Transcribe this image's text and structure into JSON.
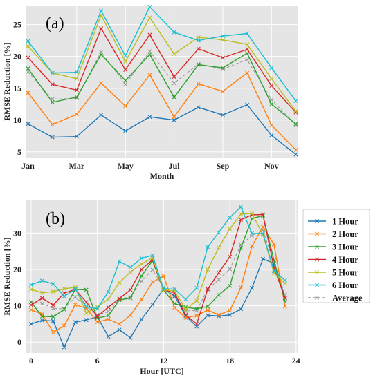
{
  "chart_data": [
    {
      "type": "line",
      "panel_label": "(a)",
      "xlabel": "Month",
      "ylabel": "RMSE Reduction [%]",
      "x": [
        1,
        2,
        3,
        4,
        5,
        6,
        7,
        8,
        9,
        10,
        11,
        12
      ],
      "xtick_values": [
        1,
        3,
        5,
        7,
        9,
        11
      ],
      "xtick_labels": [
        "Jan",
        "Mar",
        "May",
        "Jul",
        "Sep",
        "Nov"
      ],
      "ylim": [
        4,
        28
      ],
      "xlim": [
        0.9,
        12.1
      ],
      "yticks": [
        5,
        10,
        15,
        20,
        25
      ],
      "grid": true,
      "series": [
        {
          "name": "1 Hour",
          "color": "#1f77b4",
          "dashed": false,
          "values": [
            9.4,
            7.3,
            7.4,
            10.8,
            8.3,
            10.5,
            10.0,
            12.0,
            10.8,
            12.4,
            7.6,
            4.6
          ]
        },
        {
          "name": "2 Hour",
          "color": "#ff7f0e",
          "dashed": false,
          "values": [
            14.3,
            9.3,
            10.9,
            15.8,
            12.2,
            17.1,
            10.5,
            15.7,
            14.5,
            17.4,
            9.2,
            5.3
          ]
        },
        {
          "name": "3 Hour",
          "color": "#2ca02c",
          "dashed": false,
          "values": [
            18.1,
            12.8,
            13.6,
            20.3,
            16.2,
            20.3,
            13.6,
            18.7,
            18.2,
            20.5,
            12.5,
            9.4
          ]
        },
        {
          "name": "4 Hour",
          "color": "#d62728",
          "dashed": false,
          "values": [
            19.8,
            15.6,
            14.7,
            24.4,
            17.9,
            23.4,
            16.8,
            21.2,
            19.8,
            21.1,
            15.4,
            11.2
          ]
        },
        {
          "name": "5 Hour",
          "color": "#bcbd22",
          "dashed": false,
          "values": [
            21.6,
            17.4,
            16.5,
            26.5,
            19.2,
            26.1,
            20.4,
            23.0,
            22.6,
            21.9,
            16.5,
            11.4
          ]
        },
        {
          "name": "6 Hour",
          "color": "#17becf",
          "dashed": false,
          "values": [
            22.4,
            17.4,
            17.5,
            27.2,
            20.1,
            27.8,
            23.8,
            22.5,
            23.2,
            23.6,
            18.2,
            13.0
          ]
        },
        {
          "name": "Average",
          "color": "#999999",
          "dashed": true,
          "values": [
            17.6,
            13.3,
            13.4,
            20.7,
            15.6,
            20.8,
            15.8,
            18.8,
            18.0,
            19.5,
            13.2,
            9.2
          ]
        }
      ]
    },
    {
      "type": "line",
      "panel_label": "(b)",
      "xlabel": "Hour [UTC]",
      "ylabel": "RMSE Reduction [%]",
      "x": [
        0,
        1,
        2,
        3,
        4,
        5,
        6,
        7,
        8,
        9,
        10,
        11,
        12,
        13,
        14,
        15,
        16,
        17,
        18,
        19,
        20,
        21,
        22,
        23
      ],
      "xtick_values": [
        0,
        6,
        12,
        18,
        24
      ],
      "xtick_labels": [
        "0",
        "6",
        "12",
        "18",
        "24"
      ],
      "ylim": [
        -3,
        39
      ],
      "xlim": [
        -0.5,
        24.2
      ],
      "yticks": [
        0,
        10,
        20,
        30
      ],
      "grid": true,
      "legend": {
        "placement": "right",
        "entries": [
          "1 Hour",
          "2 Hour",
          "3 Hour",
          "4 Hour",
          "5 Hour",
          "6 Hour",
          "Average"
        ]
      },
      "series": [
        {
          "name": "1 Hour",
          "color": "#1f77b4",
          "dashed": false,
          "values": [
            5.0,
            6.0,
            5.8,
            -1.4,
            5.5,
            6.1,
            7.0,
            1.5,
            3.4,
            1.2,
            6.3,
            10.3,
            14.6,
            12.7,
            7.2,
            4.3,
            7.4,
            7.2,
            7.5,
            9.1,
            14.9,
            22.9,
            21.7,
            12.2
          ]
        },
        {
          "name": "2 Hour",
          "color": "#ff7f0e",
          "dashed": false,
          "values": [
            8.9,
            7.7,
            2.7,
            4.5,
            10.3,
            9.3,
            5.5,
            6.3,
            5.0,
            7.4,
            11.7,
            16.5,
            18.2,
            9.5,
            6.7,
            7.3,
            8.8,
            7.5,
            8.7,
            15.0,
            26.4,
            31.7,
            26.9,
            9.8
          ]
        },
        {
          "name": "3 Hour",
          "color": "#2ca02c",
          "dashed": false,
          "values": [
            11.0,
            7.1,
            7.0,
            9.0,
            14.5,
            14.4,
            6.6,
            7.3,
            11.6,
            12.1,
            18.2,
            22.4,
            14.3,
            10.6,
            9.6,
            9.2,
            9.8,
            13.0,
            15.5,
            25.9,
            34.0,
            34.8,
            22.5,
            11.2
          ]
        },
        {
          "name": "4 Hour",
          "color": "#d62728",
          "dashed": false,
          "values": [
            10.2,
            12.1,
            10.2,
            13.5,
            14.5,
            11.0,
            7.1,
            9.6,
            12.0,
            14.4,
            20.0,
            22.7,
            14.4,
            13.5,
            7.5,
            5.0,
            14.6,
            19.1,
            23.5,
            33.7,
            35.0,
            35.1,
            20.5,
            12.1
          ]
        },
        {
          "name": "5 Hour",
          "color": "#bcbd22",
          "dashed": false,
          "values": [
            14.5,
            13.6,
            13.9,
            14.7,
            15.1,
            8.0,
            9.7,
            11.8,
            16.4,
            19.3,
            21.5,
            23.2,
            14.4,
            14.1,
            9.0,
            11.4,
            20.0,
            26.0,
            31.2,
            35.2,
            35.4,
            29.6,
            19.0,
            16.2
          ]
        },
        {
          "name": "6 Hour",
          "color": "#17becf",
          "dashed": false,
          "values": [
            15.8,
            16.9,
            16.0,
            12.6,
            14.6,
            9.7,
            9.2,
            13.9,
            22.2,
            20.6,
            23.1,
            23.9,
            14.7,
            14.6,
            11.8,
            14.9,
            26.2,
            30.2,
            34.3,
            37.2,
            29.9,
            29.9,
            19.6,
            17.0
          ]
        },
        {
          "name": "Average",
          "color": "#999999",
          "dashed": true,
          "values": [
            11.0,
            10.6,
            9.3,
            9.1,
            12.4,
            9.8,
            7.5,
            8.4,
            11.8,
            12.5,
            16.8,
            19.9,
            15.1,
            12.5,
            8.6,
            8.7,
            14.5,
            17.2,
            20.1,
            26.8,
            29.3,
            30.7,
            21.8,
            13.1
          ]
        }
      ]
    }
  ]
}
